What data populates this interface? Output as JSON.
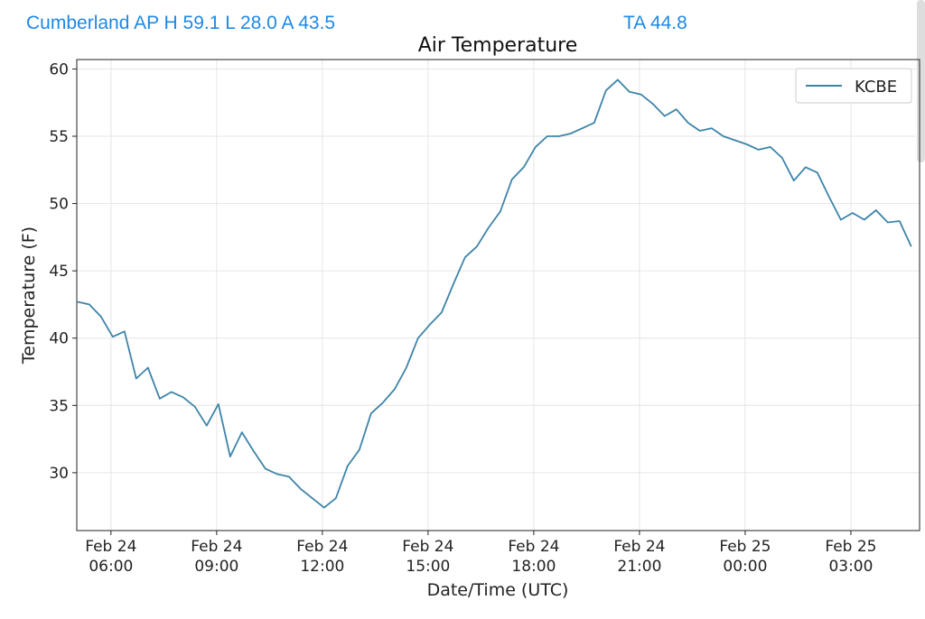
{
  "header": {
    "station_summary": "Cumberland AP H 59.1 L 28.0 A 43.5",
    "ta": "TA 44.8"
  },
  "colors": {
    "series": "#3d84a8",
    "header_text": "#1e88e5"
  },
  "chart_data": {
    "type": "line",
    "title": "Air Temperature",
    "xlabel": "Date/Time (UTC)",
    "ylabel": "Temperature (F)",
    "ylim": [
      25.7,
      60.7
    ],
    "xlim_hours_since_feb24_0000": [
      5.03,
      28.95
    ],
    "grid": true,
    "legend_position": "top-right",
    "yticks": [
      "30",
      "35",
      "40",
      "45",
      "50",
      "55",
      "60"
    ],
    "xticks": [
      {
        "hour": 6,
        "l1": "Feb 24",
        "l2": "06:00"
      },
      {
        "hour": 9,
        "l1": "Feb 24",
        "l2": "09:00"
      },
      {
        "hour": 12,
        "l1": "Feb 24",
        "l2": "12:00"
      },
      {
        "hour": 15,
        "l1": "Feb 24",
        "l2": "15:00"
      },
      {
        "hour": 18,
        "l1": "Feb 24",
        "l2": "18:00"
      },
      {
        "hour": 21,
        "l1": "Feb 24",
        "l2": "21:00"
      },
      {
        "hour": 24,
        "l1": "Feb 25",
        "l2": "00:00"
      },
      {
        "hour": 27,
        "l1": "Feb 25",
        "l2": "03:00"
      }
    ],
    "x_start_hour": 5.05,
    "x_step_hours": 0.3333,
    "series": [
      {
        "name": "KCBE",
        "values": [
          42.7,
          42.5,
          41.6,
          40.1,
          40.5,
          37.0,
          37.8,
          35.5,
          36.0,
          35.6,
          34.9,
          33.5,
          35.1,
          31.2,
          33.0,
          31.6,
          30.3,
          29.9,
          29.7,
          28.8,
          28.1,
          27.4,
          28.1,
          30.5,
          31.7,
          34.4,
          35.2,
          36.2,
          37.8,
          40.0,
          41.0,
          41.9,
          44.0,
          46.0,
          46.8,
          48.2,
          49.4,
          51.8,
          52.7,
          54.2,
          55.0,
          55.0,
          55.2,
          55.6,
          56.0,
          58.4,
          59.2,
          58.3,
          58.1,
          57.4,
          56.5,
          57.0,
          56.0,
          55.4,
          55.6,
          55.0,
          54.7,
          54.4,
          54.0,
          54.2,
          53.4,
          51.7,
          52.7,
          52.3,
          50.5,
          48.8,
          49.3,
          48.8,
          49.5,
          48.6,
          48.7,
          46.8
        ]
      }
    ]
  }
}
